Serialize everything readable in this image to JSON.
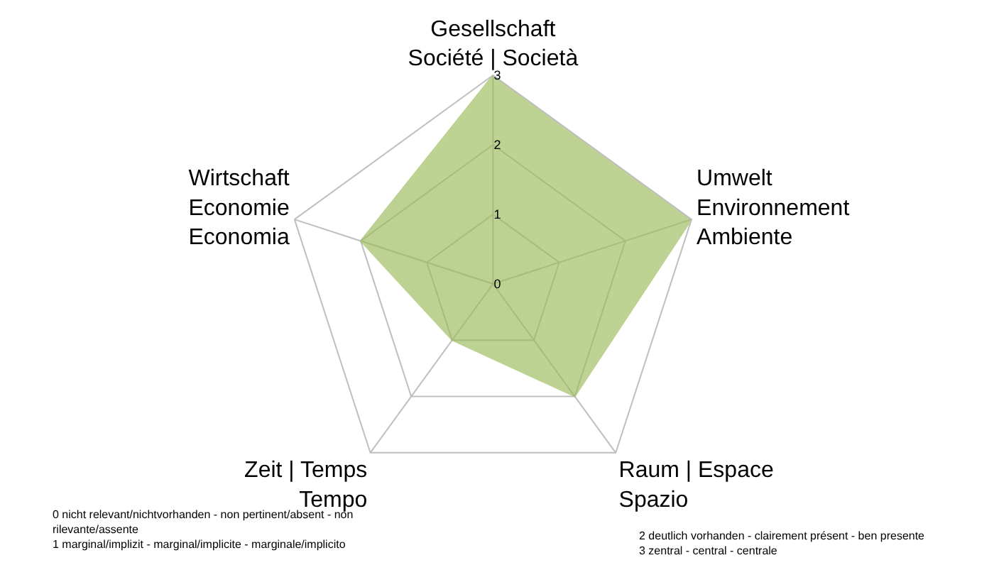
{
  "chart_data": {
    "type": "radar",
    "categories": [
      "Gesellschaft\nSociété | Società",
      "Umwelt\nEnvironnement\nAmbiente",
      "Raum | Espace\nSpazio",
      "Zeit | Temps\nTempo",
      "Wirtschaft\nEconomie\nEconomia"
    ],
    "series": [
      {
        "color": "#9bbb59",
        "values": [
          3,
          3,
          2,
          1,
          2
        ]
      }
    ],
    "ylim": [
      0,
      3
    ],
    "yticks": [
      0,
      1,
      2,
      3
    ],
    "grid": true,
    "annotations": [
      "0 nicht relevant/nichtvorhanden - non pertinent/absent - non\nrilevante/assente\n1 marginal/implizit - marginal/implicite - marginale/implicito",
      "2 deutlich vorhanden - clairement présent - ben presente\n3 zentral - central - centrale"
    ]
  }
}
